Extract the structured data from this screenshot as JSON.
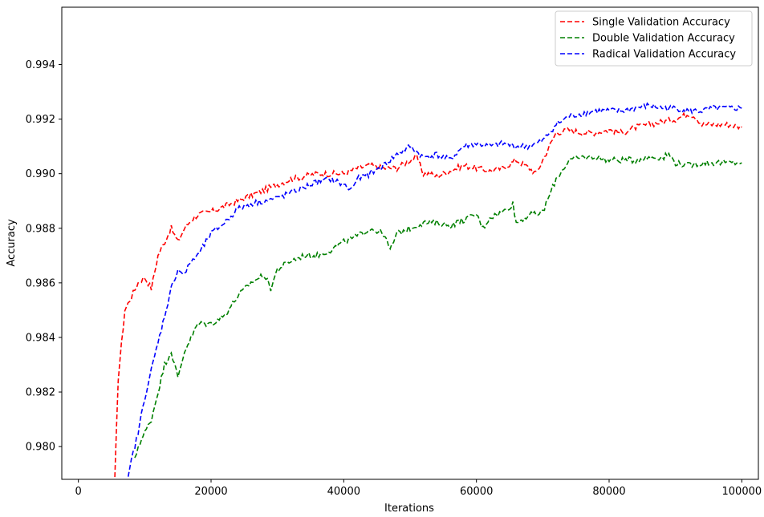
{
  "chart_data": {
    "type": "line",
    "title": "",
    "xlabel": "Iterations",
    "ylabel": "Accuracy",
    "xlim": [
      -2500,
      102500
    ],
    "ylim": [
      0.9788,
      0.9961
    ],
    "xticks": [
      0,
      20000,
      40000,
      60000,
      80000,
      100000
    ],
    "xtick_labels": [
      "0",
      "20000",
      "40000",
      "60000",
      "80000",
      "100000"
    ],
    "yticks": [
      0.98,
      0.982,
      0.984,
      0.986,
      0.988,
      0.99,
      0.992,
      0.994
    ],
    "ytick_labels": [
      "0.980",
      "0.982",
      "0.984",
      "0.986",
      "0.988",
      "0.990",
      "0.992",
      "0.994"
    ],
    "grid": false,
    "legend_position": "top-right",
    "line_style": "dashed",
    "series": [
      {
        "name": "Single Validation Accuracy",
        "color": "#ff0000",
        "x": [
          5500,
          6000,
          7000,
          8000,
          9000,
          10000,
          11000,
          12000,
          13000,
          14000,
          15000,
          16000,
          17000,
          18000,
          20000,
          22000,
          24000,
          26000,
          28000,
          30000,
          32000,
          34000,
          36000,
          38000,
          40000,
          42000,
          44000,
          46000,
          48000,
          50000,
          51000,
          52000,
          53000,
          54000,
          56000,
          58000,
          60000,
          62000,
          64000,
          66000,
          68000,
          69000,
          70000,
          72000,
          74000,
          76000,
          78000,
          80000,
          82000,
          84000,
          86000,
          88000,
          90000,
          92000,
          93000,
          94000,
          96000,
          98000,
          100000
        ],
        "y": [
          0.9788,
          0.9825,
          0.985,
          0.9855,
          0.986,
          0.9862,
          0.9858,
          0.987,
          0.9875,
          0.988,
          0.9875,
          0.988,
          0.9883,
          0.9885,
          0.9886,
          0.9888,
          0.989,
          0.9892,
          0.9894,
          0.9896,
          0.9898,
          0.9899,
          0.99,
          0.99,
          0.99,
          0.9902,
          0.9903,
          0.9902,
          0.9902,
          0.9905,
          0.9906,
          0.99,
          0.99,
          0.9899,
          0.9901,
          0.9903,
          0.9902,
          0.9901,
          0.9902,
          0.9905,
          0.9902,
          0.99,
          0.9905,
          0.9915,
          0.9916,
          0.9915,
          0.9915,
          0.9916,
          0.9915,
          0.9917,
          0.9918,
          0.9919,
          0.992,
          0.9922,
          0.9921,
          0.9918,
          0.9918,
          0.9918,
          0.9917
        ]
      },
      {
        "name": "Double Validation Accuracy",
        "color": "#008000",
        "x": [
          8500,
          9000,
          10000,
          11000,
          12000,
          13000,
          14000,
          15000,
          16000,
          17000,
          18000,
          20000,
          22000,
          24000,
          26000,
          28000,
          29000,
          30000,
          32000,
          34000,
          36000,
          38000,
          40000,
          42000,
          44000,
          46000,
          47000,
          48000,
          50000,
          52000,
          54000,
          56000,
          58000,
          60000,
          61000,
          62000,
          64000,
          65500,
          66000,
          68000,
          69000,
          70000,
          72000,
          74000,
          76000,
          78000,
          80000,
          82000,
          84000,
          86000,
          88000,
          89000,
          90000,
          92000,
          94000,
          96000,
          98000,
          100000
        ],
        "y": [
          0.9795,
          0.98,
          0.9805,
          0.981,
          0.982,
          0.983,
          0.9835,
          0.9825,
          0.9835,
          0.984,
          0.9845,
          0.9845,
          0.9848,
          0.9855,
          0.986,
          0.9863,
          0.9858,
          0.9865,
          0.9868,
          0.987,
          0.987,
          0.9872,
          0.9875,
          0.9877,
          0.988,
          0.9878,
          0.9872,
          0.9878,
          0.988,
          0.9882,
          0.9882,
          0.9881,
          0.9883,
          0.9885,
          0.988,
          0.9884,
          0.9886,
          0.9889,
          0.9882,
          0.9885,
          0.9885,
          0.9886,
          0.9898,
          0.9905,
          0.9906,
          0.9906,
          0.9905,
          0.9905,
          0.9905,
          0.9906,
          0.9906,
          0.9907,
          0.9904,
          0.9903,
          0.9904,
          0.9904,
          0.9904,
          0.9904
        ]
      },
      {
        "name": "Radical Validation Accuracy",
        "color": "#0000ff",
        "x": [
          7500,
          8000,
          9000,
          10000,
          11000,
          12000,
          13000,
          14000,
          15000,
          16000,
          17000,
          18000,
          19000,
          20000,
          22000,
          24000,
          26000,
          28000,
          30000,
          32000,
          34000,
          36000,
          38000,
          40000,
          41000,
          42000,
          44000,
          46000,
          48000,
          50000,
          52000,
          54000,
          56000,
          58000,
          60000,
          62000,
          64000,
          66000,
          68000,
          70000,
          72000,
          74000,
          76000,
          78000,
          80000,
          82000,
          84000,
          86000,
          88000,
          90000,
          92000,
          94000,
          96000,
          98000,
          100000
        ],
        "y": [
          0.9788,
          0.9795,
          0.9805,
          0.9818,
          0.9828,
          0.9838,
          0.9848,
          0.9858,
          0.9865,
          0.9863,
          0.9868,
          0.987,
          0.9874,
          0.9878,
          0.9882,
          0.9887,
          0.9889,
          0.989,
          0.9891,
          0.9893,
          0.9895,
          0.9897,
          0.9898,
          0.9896,
          0.9894,
          0.9898,
          0.99,
          0.9903,
          0.9907,
          0.991,
          0.9906,
          0.9907,
          0.9905,
          0.991,
          0.9911,
          0.991,
          0.9911,
          0.991,
          0.991,
          0.9912,
          0.9918,
          0.9921,
          0.9922,
          0.9923,
          0.9923,
          0.9923,
          0.9924,
          0.9925,
          0.9924,
          0.9924,
          0.9923,
          0.9923,
          0.9924,
          0.9924,
          0.9924
        ]
      }
    ]
  }
}
